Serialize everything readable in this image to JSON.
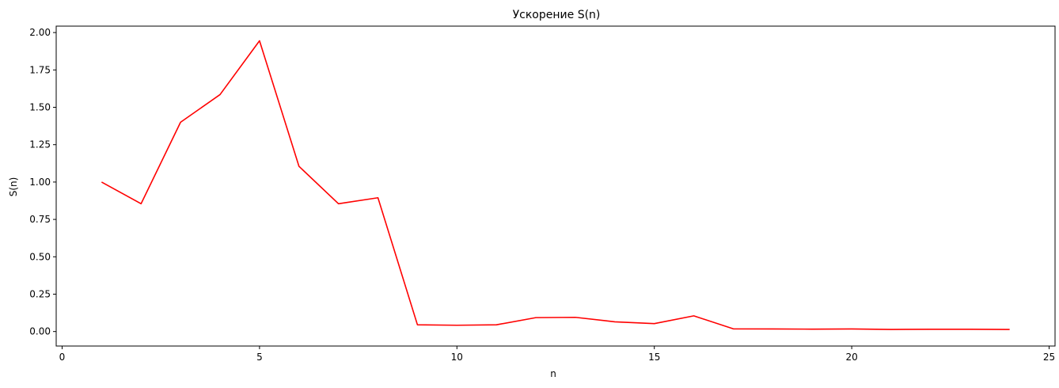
{
  "chart_data": {
    "type": "line",
    "title": "Ускорение S(n)",
    "xlabel": "n",
    "ylabel": "S(n)",
    "xlim": [
      -0.15,
      25.15
    ],
    "ylim": [
      -0.097,
      2.043
    ],
    "xticks": [
      0,
      5,
      10,
      15,
      20,
      25
    ],
    "yticks": [
      0.0,
      0.25,
      0.5,
      0.75,
      1.0,
      1.25,
      1.5,
      1.75,
      2.0
    ],
    "xtick_labels": [
      "0",
      "5",
      "10",
      "15",
      "20",
      "25"
    ],
    "ytick_labels": [
      "0.00",
      "0.25",
      "0.50",
      "0.75",
      "1.00",
      "1.25",
      "1.50",
      "1.75",
      "2.00"
    ],
    "grid": false,
    "series": [
      {
        "color": "#ff0000",
        "x": [
          1,
          2,
          3,
          4,
          5,
          6,
          7,
          8,
          9,
          10,
          11,
          12,
          13,
          14,
          15,
          16,
          17,
          18,
          19,
          20,
          21,
          22,
          23,
          24
        ],
        "y": [
          1.0,
          0.855,
          1.4,
          1.585,
          1.945,
          1.105,
          0.855,
          0.895,
          0.045,
          0.042,
          0.045,
          0.093,
          0.095,
          0.065,
          0.053,
          0.105,
          0.018,
          0.017,
          0.016,
          0.017,
          0.014,
          0.015,
          0.015,
          0.014
        ]
      }
    ]
  }
}
